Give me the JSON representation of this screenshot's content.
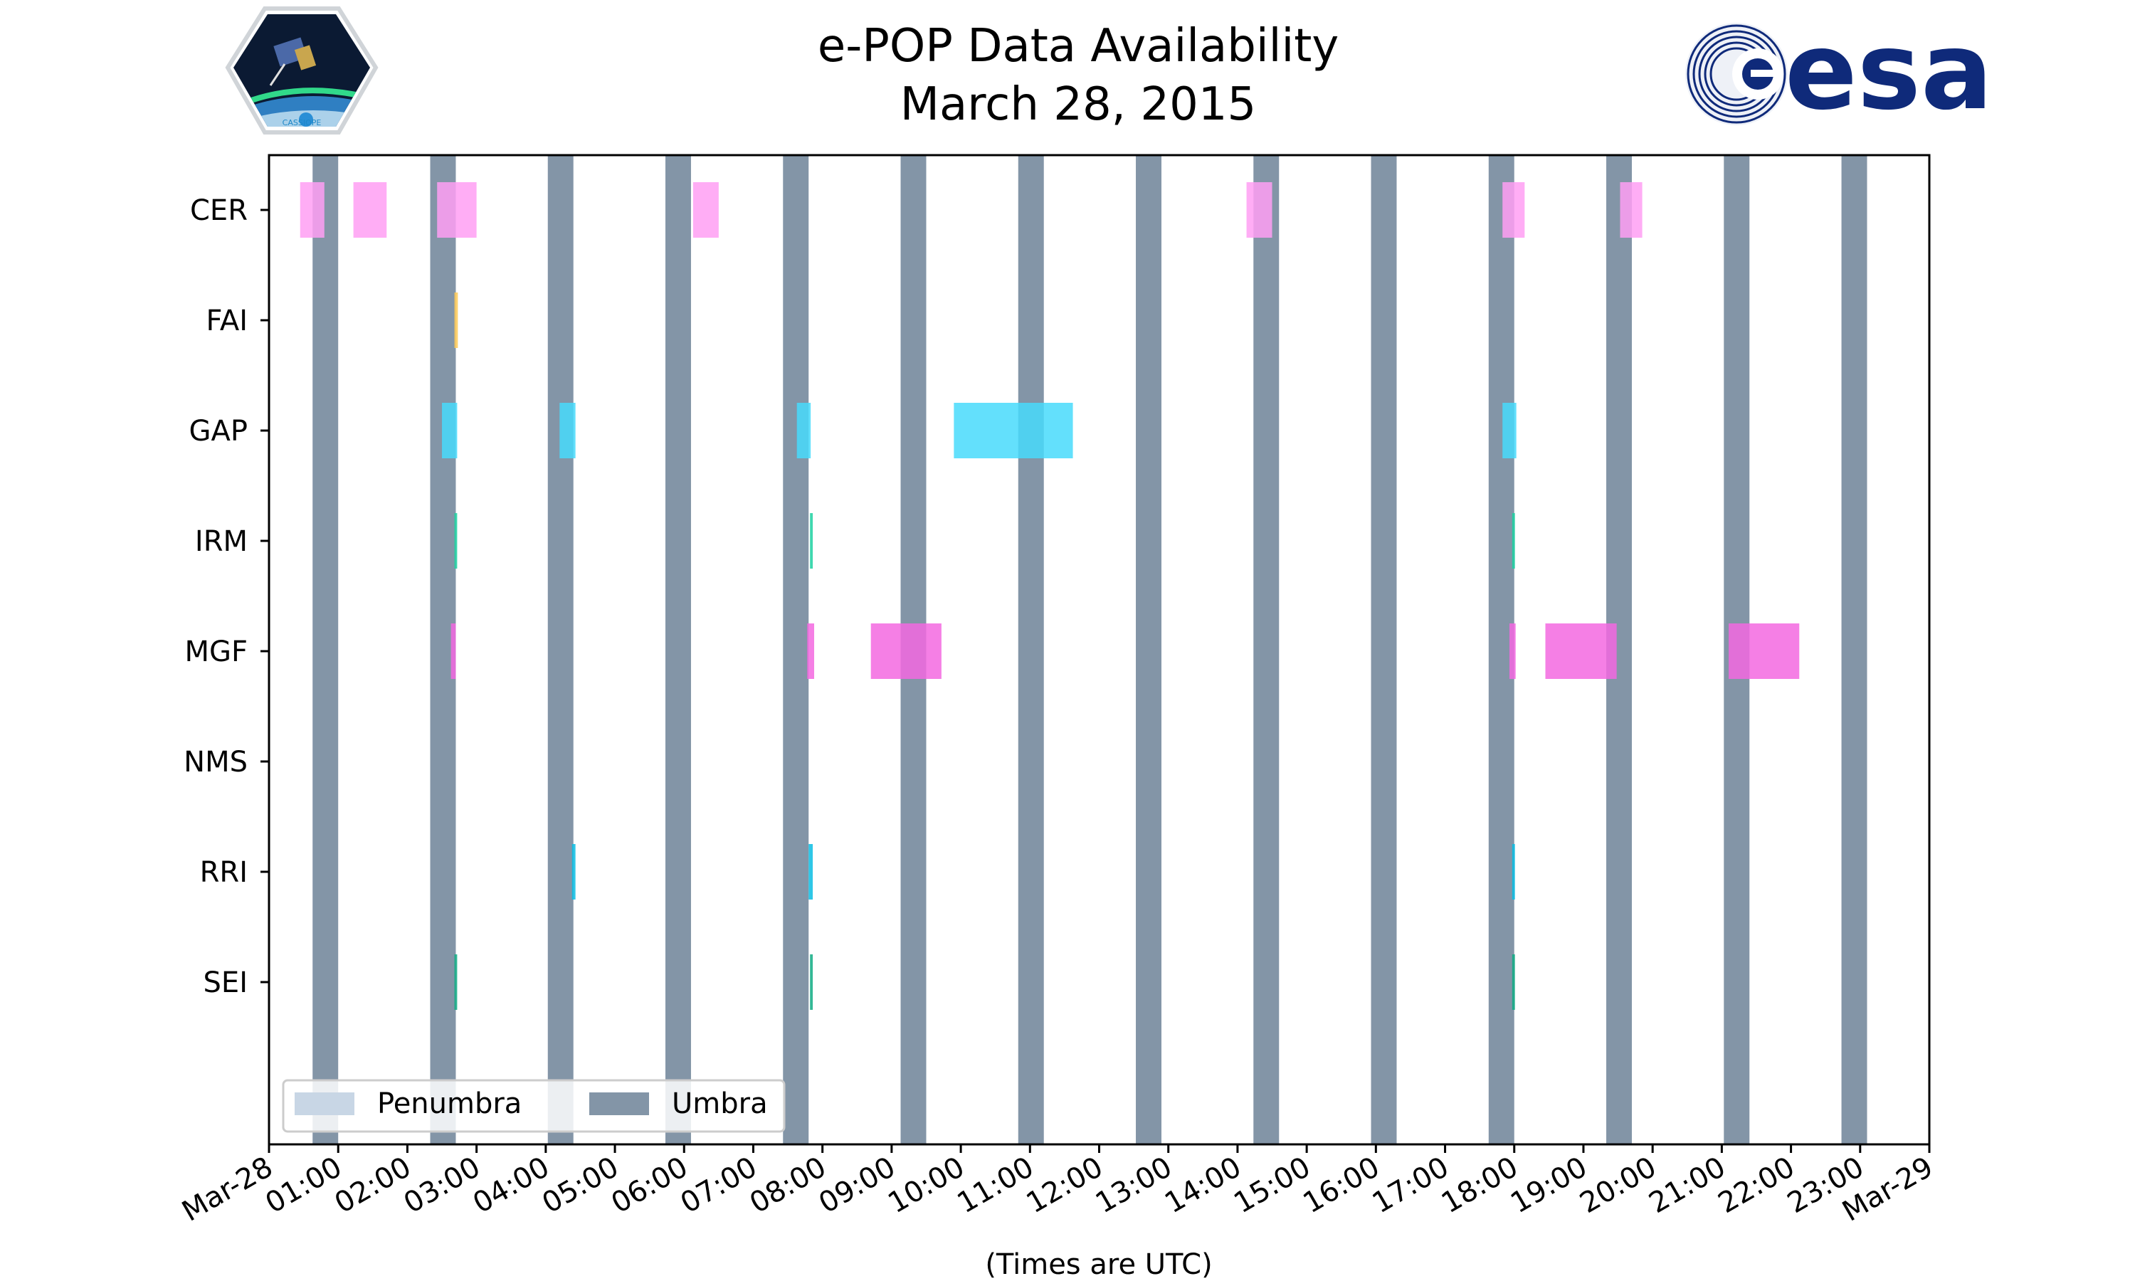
{
  "chart_data": {
    "type": "timeline",
    "title": "e-POP Data Availability",
    "subtitle": "March 28, 2015",
    "xlabel": "(Times are UTC)",
    "xlim": [
      0,
      24
    ],
    "x_tick_labels": [
      "Mar-28",
      "01:00",
      "02:00",
      "03:00",
      "04:00",
      "05:00",
      "06:00",
      "07:00",
      "08:00",
      "09:00",
      "10:00",
      "11:00",
      "12:00",
      "13:00",
      "14:00",
      "15:00",
      "16:00",
      "17:00",
      "18:00",
      "19:00",
      "20:00",
      "21:00",
      "22:00",
      "23:00",
      "Mar-29"
    ],
    "instruments": [
      "CER",
      "FAI",
      "GAP",
      "IRM",
      "MGF",
      "NMS",
      "RRI",
      "SEI"
    ],
    "umbra_color": "#8395a7",
    "penumbra_color": "#c8d6e5",
    "umbra_intervals": [
      [
        0.63,
        1.0
      ],
      [
        2.33,
        2.7
      ],
      [
        4.03,
        4.4
      ],
      [
        5.73,
        6.1
      ],
      [
        7.43,
        7.8
      ],
      [
        9.13,
        9.5
      ],
      [
        10.83,
        11.2
      ],
      [
        12.53,
        12.9
      ],
      [
        14.23,
        14.6
      ],
      [
        15.93,
        16.3
      ],
      [
        17.63,
        18.0
      ],
      [
        19.33,
        19.7
      ],
      [
        21.03,
        21.4
      ],
      [
        22.73,
        23.1
      ]
    ],
    "series": [
      {
        "name": "CER",
        "color": "#ff9ff3",
        "intervals": [
          [
            0.45,
            0.8
          ],
          [
            1.22,
            1.7
          ],
          [
            2.43,
            3.0
          ],
          [
            6.13,
            6.5
          ],
          [
            14.13,
            14.5
          ],
          [
            17.83,
            18.15
          ],
          [
            19.53,
            19.85
          ]
        ]
      },
      {
        "name": "FAI",
        "color": "#feca57",
        "intervals": [
          [
            2.68,
            2.73
          ]
        ]
      },
      {
        "name": "GAP",
        "color": "#48dbfb",
        "intervals": [
          [
            2.5,
            2.72
          ],
          [
            4.2,
            4.43
          ],
          [
            7.63,
            7.83
          ],
          [
            9.9,
            11.62
          ],
          [
            17.83,
            18.03
          ]
        ]
      },
      {
        "name": "IRM",
        "color": "#1dd1a1",
        "intervals": [
          [
            2.68,
            2.72
          ],
          [
            7.82,
            7.86
          ],
          [
            17.97,
            18.01
          ]
        ]
      },
      {
        "name": "MGF",
        "color": "#f368e0",
        "intervals": [
          [
            2.63,
            2.7
          ],
          [
            7.78,
            7.88
          ],
          [
            8.7,
            9.72
          ],
          [
            17.93,
            18.02
          ],
          [
            18.45,
            19.48
          ],
          [
            21.1,
            22.12
          ]
        ]
      },
      {
        "name": "NMS",
        "color": "#f368e0",
        "intervals": []
      },
      {
        "name": "RRI",
        "color": "#0abde3",
        "intervals": [
          [
            4.38,
            4.43
          ],
          [
            7.8,
            7.86
          ],
          [
            17.97,
            18.01
          ]
        ]
      },
      {
        "name": "SEI",
        "color": "#10ac84",
        "intervals": [
          [
            2.68,
            2.72
          ],
          [
            7.82,
            7.86
          ],
          [
            17.97,
            18.01
          ]
        ]
      }
    ],
    "legend": {
      "location": "bottom-left",
      "entries": [
        {
          "label": "Penumbra",
          "color": "#c8d6e5"
        },
        {
          "label": "Umbra",
          "color": "#8395a7"
        }
      ]
    }
  },
  "logos": {
    "left": {
      "text": "CASSIOPE"
    },
    "right": {
      "text": "esa",
      "color": "#0f2a7a"
    }
  }
}
